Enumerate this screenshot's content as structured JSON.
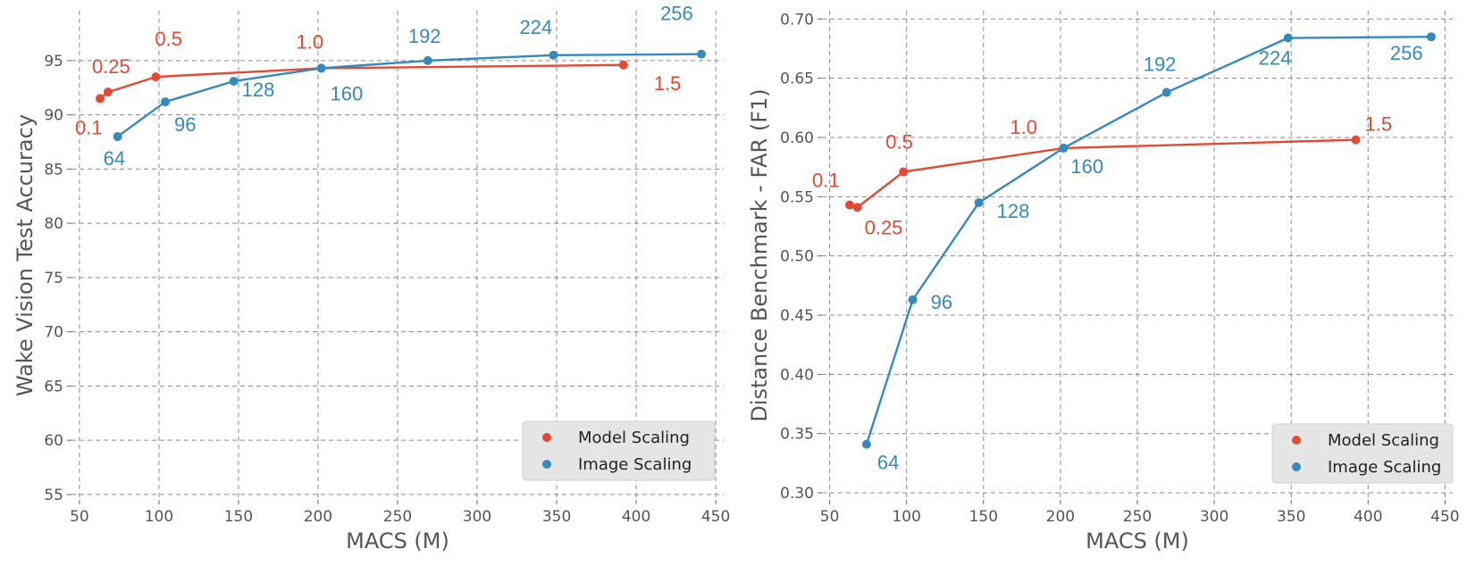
{
  "chart_data": [
    {
      "type": "line",
      "xlabel": "MACS (M)",
      "ylabel": "Wake Vision Test Accuracy",
      "xlim": [
        45,
        455
      ],
      "ylim": [
        54.5,
        99.6
      ],
      "xticks": [
        50,
        100,
        150,
        200,
        250,
        300,
        350,
        400,
        450
      ],
      "yticks": [
        55,
        60,
        65,
        70,
        75,
        80,
        85,
        90,
        95
      ],
      "ytick_labels": [
        "55",
        "60",
        "65",
        "70",
        "75",
        "80",
        "85",
        "90",
        "95"
      ],
      "grid": true,
      "legend": "bottom-right",
      "series": [
        {
          "name": "Model Scaling",
          "color": "#E24A33",
          "points": [
            {
              "x": 63,
              "y": 91.5,
              "label": "0.1"
            },
            {
              "x": 68,
              "y": 92.1,
              "label": "0.25"
            },
            {
              "x": 98,
              "y": 93.5,
              "label": "0.5"
            },
            {
              "x": 202,
              "y": 94.3,
              "label": "1.0"
            },
            {
              "x": 392,
              "y": 94.6,
              "label": "1.5"
            }
          ]
        },
        {
          "name": "Image Scaling",
          "color": "#348ABD",
          "points": [
            {
              "x": 74,
              "y": 88.0,
              "label": "64"
            },
            {
              "x": 104,
              "y": 91.2,
              "label": "96"
            },
            {
              "x": 147,
              "y": 93.1,
              "label": "128"
            },
            {
              "x": 202,
              "y": 94.3,
              "label": "160"
            },
            {
              "x": 269,
              "y": 95.0,
              "label": "192"
            },
            {
              "x": 348,
              "y": 95.5,
              "label": "224"
            },
            {
              "x": 441,
              "y": 95.6,
              "label": "256"
            }
          ]
        }
      ]
    },
    {
      "type": "line",
      "xlabel": "MACS (M)",
      "ylabel": "Distance Benchmark - FAR (F1)",
      "xlim": [
        45,
        455
      ],
      "ylim": [
        0.294,
        0.707
      ],
      "xticks": [
        50,
        100,
        150,
        200,
        250,
        300,
        350,
        400,
        450
      ],
      "yticks": [
        0.3,
        0.35,
        0.4,
        0.45,
        0.5,
        0.55,
        0.6,
        0.65,
        0.7
      ],
      "ytick_labels": [
        "0.30",
        "0.35",
        "0.40",
        "0.45",
        "0.50",
        "0.55",
        "0.60",
        "0.65",
        "0.70"
      ],
      "grid": true,
      "legend": "bottom-right",
      "series": [
        {
          "name": "Model Scaling",
          "color": "#E24A33",
          "points": [
            {
              "x": 63,
              "y": 0.543,
              "label": "0.1"
            },
            {
              "x": 68,
              "y": 0.541,
              "label": "0.25"
            },
            {
              "x": 98,
              "y": 0.571,
              "label": "0.5"
            },
            {
              "x": 202,
              "y": 0.591,
              "label": "1.0"
            },
            {
              "x": 392,
              "y": 0.598,
              "label": "1.5"
            }
          ]
        },
        {
          "name": "Image Scaling",
          "color": "#348ABD",
          "points": [
            {
              "x": 74,
              "y": 0.341,
              "label": "64"
            },
            {
              "x": 104,
              "y": 0.463,
              "label": "96"
            },
            {
              "x": 147,
              "y": 0.545,
              "label": "128"
            },
            {
              "x": 202,
              "y": 0.591,
              "label": "160"
            },
            {
              "x": 269,
              "y": 0.638,
              "label": "192"
            },
            {
              "x": 348,
              "y": 0.684,
              "label": "224"
            },
            {
              "x": 441,
              "y": 0.685,
              "label": "256"
            }
          ]
        }
      ]
    }
  ]
}
